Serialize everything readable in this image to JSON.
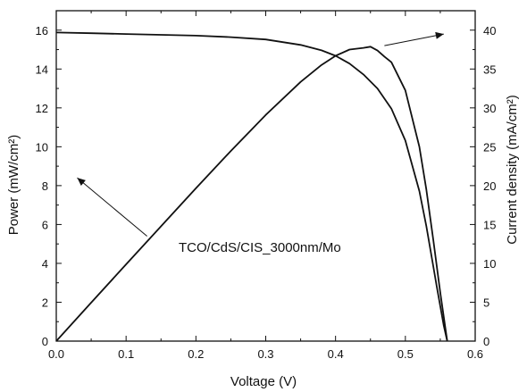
{
  "chart_data": {
    "type": "line",
    "title": "",
    "xlabel": "Voltage (V)",
    "ylabel_left": "Power (mW/cm²)",
    "ylabel_right": "Current density (mA/cm²)",
    "xlim": [
      0.0,
      0.6
    ],
    "ylim_left": [
      0,
      17
    ],
    "ylim_right": [
      0,
      42.5
    ],
    "x_ticks": [
      "0.0",
      "0.1",
      "0.2",
      "0.3",
      "0.4",
      "0.5",
      "0.6"
    ],
    "y_left_ticks": [
      "0",
      "2",
      "4",
      "6",
      "8",
      "10",
      "12",
      "14",
      "16"
    ],
    "y_right_ticks": [
      "0",
      "5",
      "10",
      "15",
      "20",
      "25",
      "30",
      "35",
      "40"
    ],
    "annotation": "TCO/CdS/CIS_3000nm/Mo",
    "grid": false,
    "series": [
      {
        "axis": "right",
        "x": [
          0.0,
          0.05,
          0.1,
          0.15,
          0.2,
          0.25,
          0.3,
          0.35,
          0.38,
          0.4,
          0.42,
          0.44,
          0.46,
          0.48,
          0.5,
          0.52,
          0.53,
          0.54,
          0.545,
          0.55,
          0.555,
          0.56
        ],
        "y": [
          39.7,
          39.6,
          39.5,
          39.4,
          39.3,
          39.1,
          38.8,
          38.1,
          37.4,
          36.7,
          35.7,
          34.3,
          32.5,
          29.9,
          25.8,
          19.3,
          14.8,
          9.6,
          7.0,
          4.5,
          2.0,
          0.0
        ]
      },
      {
        "axis": "left",
        "x": [
          0.0,
          0.05,
          0.1,
          0.15,
          0.2,
          0.25,
          0.3,
          0.35,
          0.38,
          0.4,
          0.42,
          0.44,
          0.45,
          0.46,
          0.47,
          0.48,
          0.5,
          0.52,
          0.53,
          0.54,
          0.55,
          0.56
        ],
        "y": [
          0.0,
          1.98,
          3.95,
          5.91,
          7.86,
          9.78,
          11.64,
          13.34,
          14.21,
          14.68,
          15.0,
          15.09,
          15.15,
          14.95,
          14.64,
          14.35,
          12.9,
          10.0,
          7.8,
          5.2,
          2.5,
          0.0
        ]
      }
    ],
    "arrows": [
      {
        "from": [
          0.13,
          13.5
        ],
        "to": [
          0.03,
          21.0
        ],
        "axis": "right"
      },
      {
        "from": [
          0.47,
          15.2
        ],
        "to": [
          0.555,
          15.8
        ],
        "axis": "left"
      }
    ]
  }
}
